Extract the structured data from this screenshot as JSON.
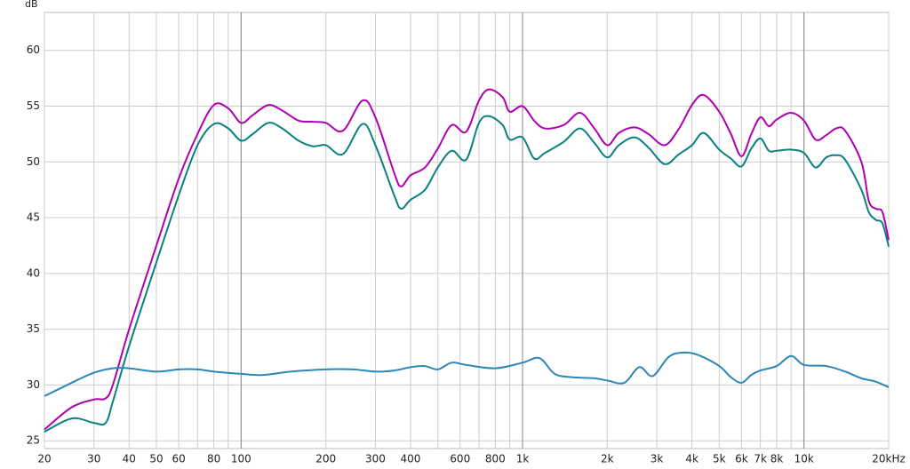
{
  "chart_data": {
    "type": "line",
    "y_label": "dB",
    "log_x": true,
    "grid": true,
    "xlim": [
      20,
      20000
    ],
    "ylim": [
      24.3,
      63.4
    ],
    "yticks": [
      25,
      30,
      35,
      40,
      45,
      50,
      55,
      60
    ],
    "xticks": [
      20,
      30,
      40,
      50,
      60,
      80,
      100,
      200,
      300,
      400,
      600,
      800,
      {
        "value": 1000,
        "label": "1k"
      },
      {
        "value": 2000,
        "label": "2k"
      },
      {
        "value": 3000,
        "label": "3k"
      },
      {
        "value": 4000,
        "label": "4k"
      },
      {
        "value": 5000,
        "label": "5k"
      },
      {
        "value": 6000,
        "label": "6k"
      },
      {
        "value": 7000,
        "label": "7k"
      },
      {
        "value": 8000,
        "label": "8k"
      },
      {
        "value": 10000,
        "label": "10k"
      },
      {
        "value": 20000,
        "label": "20kHz"
      }
    ],
    "x_minor_grid": [
      70,
      90,
      500,
      700,
      900,
      9000
    ],
    "x_major_grid": [
      100,
      1000,
      10000
    ],
    "series": [
      {
        "color": "#b000b0",
        "x": [
          20,
          25,
          30,
          33,
          35,
          40,
          50,
          60,
          70,
          80,
          90,
          100,
          110,
          125,
          140,
          160,
          180,
          200,
          230,
          270,
          300,
          350,
          370,
          400,
          450,
          500,
          560,
          630,
          700,
          760,
          850,
          900,
          1000,
          1100,
          1200,
          1400,
          1600,
          1800,
          2000,
          2200,
          2500,
          2800,
          3200,
          3600,
          4000,
          4400,
          5000,
          5500,
          6000,
          6500,
          7000,
          7500,
          8000,
          9000,
          10000,
          11000,
          12000,
          13000,
          14000,
          16000,
          17000,
          18000,
          19000,
          20000
        ],
        "values": [
          26.0,
          28.0,
          28.7,
          28.8,
          30,
          35,
          42.5,
          48.5,
          52.5,
          55.1,
          54.8,
          53.5,
          54.2,
          55.1,
          54.6,
          53.7,
          53.6,
          53.5,
          52.8,
          55.5,
          54,
          49,
          47.8,
          48.8,
          49.5,
          51.2,
          53.3,
          52.7,
          55.5,
          56.5,
          55.8,
          54.5,
          55.0,
          53.7,
          53,
          53.3,
          54.4,
          53,
          51.5,
          52.6,
          53.1,
          52.5,
          51.5,
          53,
          55.1,
          56,
          54.5,
          52.5,
          50.5,
          52.5,
          54,
          53.2,
          53.8,
          54.4,
          53.7,
          52,
          52.4,
          53,
          52.8,
          50,
          46.5,
          45.8,
          45.5,
          43.0
        ]
      },
      {
        "color": "#0a8080",
        "x": [
          20,
          25,
          30,
          33,
          35,
          40,
          50,
          60,
          70,
          80,
          90,
          100,
          110,
          125,
          140,
          160,
          180,
          200,
          230,
          270,
          300,
          350,
          370,
          400,
          450,
          500,
          560,
          630,
          700,
          760,
          850,
          900,
          1000,
          1100,
          1200,
          1400,
          1600,
          1800,
          2000,
          2200,
          2500,
          2800,
          3200,
          3600,
          4000,
          4400,
          5000,
          5500,
          6000,
          6500,
          7000,
          7500,
          8000,
          9000,
          10000,
          11000,
          12000,
          13000,
          14000,
          16000,
          17000,
          18000,
          19000,
          20000
        ],
        "values": [
          25.8,
          27,
          26.6,
          26.6,
          28.5,
          33.5,
          41,
          47,
          51.5,
          53.4,
          53,
          51.9,
          52.5,
          53.5,
          53,
          51.9,
          51.4,
          51.5,
          50.7,
          53.4,
          51.5,
          47,
          45.8,
          46.6,
          47.5,
          49.5,
          51,
          50.2,
          53.5,
          54.1,
          53.3,
          52,
          52.2,
          50.3,
          50.8,
          51.8,
          53,
          51.7,
          50.4,
          51.5,
          52.2,
          51.3,
          49.8,
          50.7,
          51.5,
          52.6,
          51.1,
          50.3,
          49.6,
          51.2,
          52.1,
          51,
          51,
          51.1,
          50.8,
          49.5,
          50.4,
          50.6,
          50.2,
          47.5,
          45.5,
          44.8,
          44.5,
          42.4
        ]
      },
      {
        "color": "#2f86b5",
        "x": [
          20,
          25,
          30,
          35,
          40,
          50,
          60,
          70,
          80,
          100,
          120,
          150,
          200,
          250,
          300,
          350,
          400,
          450,
          500,
          560,
          630,
          800,
          1000,
          1150,
          1300,
          1500,
          1800,
          2000,
          2300,
          2600,
          2900,
          3300,
          3700,
          4200,
          5000,
          5500,
          6000,
          6500,
          7000,
          8000,
          9000,
          10000,
          12000,
          14000,
          16000,
          18000,
          20000
        ],
        "values": [
          29,
          30.2,
          31.1,
          31.5,
          31.5,
          31.2,
          31.4,
          31.4,
          31.2,
          31,
          30.9,
          31.2,
          31.4,
          31.4,
          31.2,
          31.3,
          31.6,
          31.7,
          31.4,
          32,
          31.8,
          31.5,
          32,
          32.4,
          31,
          30.7,
          30.6,
          30.4,
          30.2,
          31.6,
          30.8,
          32.5,
          32.9,
          32.7,
          31.7,
          30.7,
          30.2,
          30.9,
          31.3,
          31.7,
          32.6,
          31.8,
          31.7,
          31.2,
          30.6,
          30.3,
          29.8
        ]
      }
    ]
  }
}
